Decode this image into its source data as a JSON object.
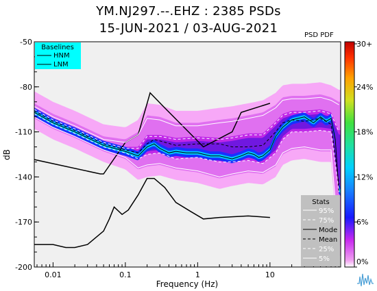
{
  "title_line1": "YM.NJ297.--.EHZ : 2385 PSDs",
  "title_line2": "15-JUN-2021 / 03-AUG-2021",
  "colorbar_label": "PSD PDF",
  "colors": {
    "plot_bg": "#f0f0f0",
    "legend_bg": "#00ffff",
    "stats_bg": "#c0c0c0"
  },
  "chart_data": {
    "type": "line",
    "xlabel": "Frequency (Hz)",
    "ylabel": "dB",
    "xscale": "log",
    "xlim": [
      0.0055,
      95
    ],
    "ylim": [
      -200,
      -50
    ],
    "x_ticks": [
      {
        "value": 0.01,
        "label": "0.01"
      },
      {
        "value": 0.1,
        "label": "0.1"
      },
      {
        "value": 1,
        "label": "1"
      },
      {
        "value": 10,
        "label": "10"
      }
    ],
    "y_ticks": [
      {
        "value": -50,
        "label": "-50"
      },
      {
        "value": -80,
        "label": "-80"
      },
      {
        "value": -110,
        "label": "-110"
      },
      {
        "value": -140,
        "label": "-140"
      },
      {
        "value": -170,
        "label": "-170"
      },
      {
        "value": -200,
        "label": "-200"
      }
    ],
    "colorbar": {
      "ticks": [
        "30+",
        "24%",
        "18%",
        "12%",
        "6%",
        "0%"
      ]
    },
    "baselines_legend": {
      "title": "Baselines",
      "entries": [
        "HNM",
        "LNM"
      ]
    },
    "stats_legend": {
      "title": "Stats",
      "entries": [
        "95%",
        "75%",
        "Mode",
        "Mean",
        "25%",
        "5%"
      ]
    },
    "series": [
      {
        "name": "HNM",
        "x": [
          0.005,
          0.045,
          0.05,
          0.1,
          0.15,
          0.22,
          0.35,
          1.2,
          3.0,
          4.0,
          10.0
        ],
        "y": [
          -128,
          -138,
          -138,
          -117,
          -112,
          -84,
          -94,
          -120,
          -110,
          -97,
          -91
        ]
      },
      {
        "name": "LNM",
        "x": [
          0.005,
          0.01,
          0.015,
          0.02,
          0.03,
          0.05,
          0.06,
          0.07,
          0.09,
          0.11,
          0.15,
          0.2,
          0.25,
          0.35,
          0.5,
          0.8,
          1.2,
          2.0,
          5.0,
          10.0
        ],
        "y": [
          -185,
          -185,
          -187,
          -187,
          -185,
          -176,
          -168,
          -160,
          -165,
          -162,
          -152,
          -141,
          -141,
          -147,
          -157,
          -163,
          -168,
          -167,
          -166,
          -167
        ]
      },
      {
        "name": "Mode",
        "x": [
          0.0055,
          0.01,
          0.02,
          0.05,
          0.1,
          0.15,
          0.2,
          0.25,
          0.3,
          0.4,
          0.5,
          0.7,
          1.0,
          1.5,
          2.0,
          3.0,
          4.0,
          5.0,
          6.0,
          7.0,
          8.0,
          10.0,
          12.0,
          15.0,
          20.0,
          30.0,
          40.0,
          50.0,
          60.0,
          70.0,
          80.0,
          90.0
        ],
        "y": [
          -97,
          -104,
          -110,
          -119,
          -123,
          -126,
          -120,
          -118,
          -121,
          -124,
          -123,
          -124,
          -124,
          -126,
          -126,
          -128,
          -126,
          -124,
          -125,
          -127,
          -126,
          -122,
          -113,
          -107,
          -102,
          -100,
          -104,
          -100,
          -103,
          -101,
          -115,
          -150
        ]
      },
      {
        "name": "Mean",
        "x": [
          0.0055,
          0.01,
          0.02,
          0.05,
          0.1,
          0.15,
          0.2,
          0.25,
          0.3,
          0.5,
          1.0,
          2.0,
          3.0,
          5.0,
          8.0,
          12.0,
          15.0,
          20.0,
          30.0,
          50.0,
          70.0,
          90.0
        ],
        "y": [
          -96,
          -103,
          -109,
          -118,
          -122,
          -124,
          -118,
          -115,
          -116,
          -119,
          -118,
          -118,
          -120,
          -120,
          -119,
          -110,
          -104,
          -102,
          -103,
          -101,
          -105,
          -145
        ]
      },
      {
        "name": "95%",
        "x": [
          0.0055,
          0.01,
          0.02,
          0.05,
          0.1,
          0.15,
          0.2,
          0.3,
          0.5,
          1.0,
          2.0,
          3.0,
          5.0,
          8.0,
          12.0,
          15.0,
          20.0,
          30.0,
          50.0,
          70.0,
          90.0
        ],
        "y": [
          -93,
          -100,
          -106,
          -115,
          -117,
          -112,
          -101,
          -102,
          -106,
          -106,
          -104,
          -103,
          -101,
          -99,
          -94,
          -89,
          -88,
          -88,
          -87,
          -89,
          -92
        ]
      },
      {
        "name": "75%",
        "x": [
          0.0055,
          0.01,
          0.02,
          0.05,
          0.1,
          0.15,
          0.2,
          0.3,
          0.5,
          1.0,
          2.0,
          3.0,
          5.0,
          8.0,
          12.0,
          15.0,
          20.0,
          30.0,
          50.0,
          70.0,
          90.0
        ],
        "y": [
          -95,
          -102,
          -108,
          -117,
          -121,
          -121,
          -113,
          -113,
          -115,
          -114,
          -115,
          -114,
          -112,
          -112,
          -104,
          -99,
          -97,
          -97,
          -96,
          -98,
          -110
        ]
      },
      {
        "name": "25%",
        "x": [
          0.0055,
          0.01,
          0.02,
          0.05,
          0.1,
          0.15,
          0.2,
          0.3,
          0.5,
          1.0,
          2.0,
          3.0,
          5.0,
          8.0,
          12.0,
          15.0,
          20.0,
          30.0,
          50.0,
          70.0,
          90.0
        ],
        "y": [
          -98,
          -105,
          -111,
          -120,
          -124,
          -128,
          -125,
          -124,
          -128,
          -127,
          -130,
          -130,
          -129,
          -131,
          -124,
          -115,
          -110,
          -110,
          -109,
          -110,
          -150
        ]
      },
      {
        "name": "5%",
        "x": [
          0.0055,
          0.01,
          0.02,
          0.05,
          0.1,
          0.15,
          0.2,
          0.3,
          0.5,
          1.0,
          2.0,
          3.0,
          5.0,
          8.0,
          12.0,
          15.0,
          20.0,
          30.0,
          50.0,
          70.0,
          90.0
        ],
        "y": [
          -100,
          -107,
          -113,
          -122,
          -127,
          -134,
          -132,
          -131,
          -134,
          -136,
          -140,
          -138,
          -136,
          -137,
          -132,
          -124,
          -121,
          -120,
          -122,
          -122,
          -185
        ]
      }
    ]
  }
}
